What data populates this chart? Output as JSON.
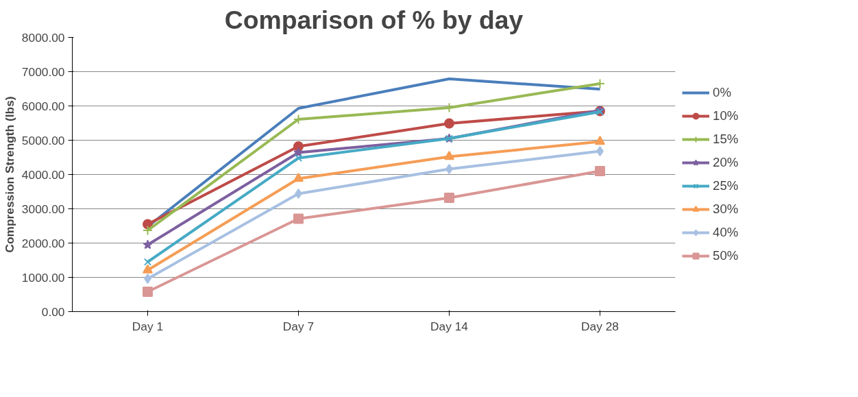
{
  "chart_data": {
    "type": "line",
    "title": "Comparison of % by day",
    "ylabel": "Compression Strength (lbs)",
    "categories": [
      "Day 1",
      "Day 7",
      "Day 14",
      "Day 28"
    ],
    "series": [
      {
        "name": "0%",
        "color": "#4a7ebb",
        "marker": "none",
        "values": [
          2480,
          5930,
          6790,
          6490
        ]
      },
      {
        "name": "10%",
        "color": "#be4b48",
        "marker": "circle",
        "values": [
          2550,
          4820,
          5490,
          5850
        ]
      },
      {
        "name": "15%",
        "color": "#98b954",
        "marker": "cross",
        "values": [
          2370,
          5610,
          5950,
          6650
        ]
      },
      {
        "name": "20%",
        "color": "#7d60a0",
        "marker": "star",
        "values": [
          1950,
          4640,
          5050,
          5870
        ]
      },
      {
        "name": "25%",
        "color": "#46aac5",
        "marker": "x",
        "values": [
          1450,
          4480,
          5050,
          5830
        ]
      },
      {
        "name": "30%",
        "color": "#f59d56",
        "marker": "triangle",
        "values": [
          1210,
          3880,
          4520,
          4960
        ]
      },
      {
        "name": "40%",
        "color": "#a7c0e2",
        "marker": "diamond",
        "values": [
          960,
          3440,
          4160,
          4680
        ]
      },
      {
        "name": "50%",
        "color": "#d99694",
        "marker": "square",
        "values": [
          580,
          2710,
          3320,
          4100
        ]
      }
    ],
    "ylim": [
      0,
      8000
    ],
    "yticks": [
      {
        "value": 0,
        "label": "0.00"
      },
      {
        "value": 1000,
        "label": "1000.00"
      },
      {
        "value": 2000,
        "label": "2000.00"
      },
      {
        "value": 3000,
        "label": "3000.00"
      },
      {
        "value": 4000,
        "label": "4000.00"
      },
      {
        "value": 5000,
        "label": "5000.00"
      },
      {
        "value": 6000,
        "label": "6000.00"
      },
      {
        "value": 7000,
        "label": "7000.00"
      },
      {
        "value": 8000,
        "label": "8000.00"
      }
    ],
    "grid": "y",
    "legend": "right",
    "line_style": "solid"
  }
}
